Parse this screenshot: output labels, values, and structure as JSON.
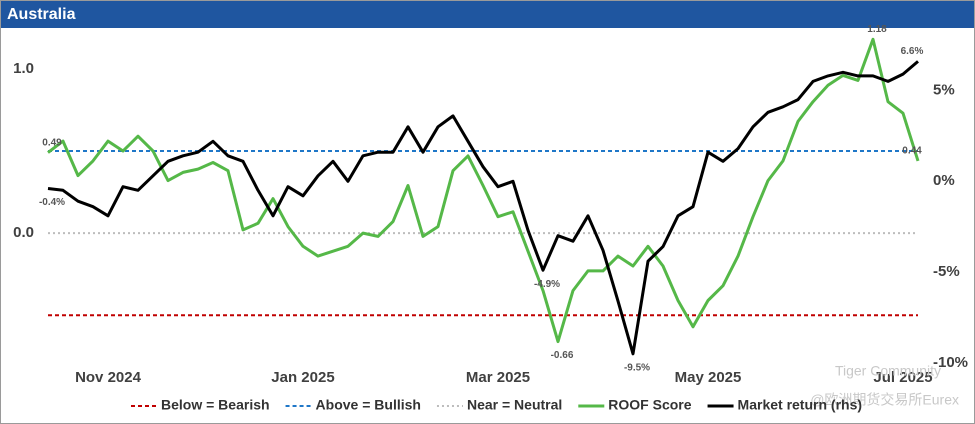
{
  "chart_data": {
    "type": "line",
    "title": "Australia",
    "categories": [
      null,
      null,
      null,
      null,
      "Nov 2024",
      null,
      null,
      null,
      null,
      null,
      null,
      null,
      null,
      null,
      null,
      null,
      null,
      "Jan 2025",
      null,
      null,
      null,
      null,
      null,
      null,
      null,
      null,
      null,
      null,
      null,
      null,
      "Mar 2025",
      null,
      null,
      null,
      null,
      null,
      null,
      null,
      null,
      null,
      null,
      null,
      null,
      null,
      "May 2025",
      null,
      null,
      null,
      null,
      null,
      null,
      null,
      null,
      null,
      null,
      null,
      null,
      "Jul 2025",
      null
    ],
    "series": [
      {
        "name": "ROOF Score",
        "color": "#55b848",
        "axis": "y",
        "values": [
          0.49,
          0.56,
          0.35,
          0.44,
          0.56,
          0.5,
          0.59,
          0.5,
          0.32,
          0.37,
          0.39,
          0.43,
          0.38,
          0.02,
          0.06,
          0.21,
          0.04,
          -0.08,
          -0.14,
          -0.11,
          -0.08,
          0.0,
          -0.02,
          0.07,
          0.29,
          -0.02,
          0.04,
          0.38,
          0.47,
          0.29,
          0.1,
          0.13,
          -0.11,
          -0.35,
          -0.66,
          -0.35,
          -0.23,
          -0.23,
          -0.14,
          -0.2,
          -0.08,
          -0.2,
          -0.41,
          -0.57,
          -0.41,
          -0.32,
          -0.14,
          0.1,
          0.32,
          0.44,
          0.68,
          0.8,
          0.9,
          0.96,
          0.93,
          1.18,
          0.8,
          0.73,
          0.44
        ],
        "value_labels": [
          "0.49",
          null,
          null,
          null,
          null,
          null,
          null,
          null,
          null,
          null,
          null,
          null,
          null,
          null,
          null,
          null,
          null,
          null,
          null,
          null,
          null,
          null,
          null,
          null,
          null,
          null,
          null,
          null,
          null,
          null,
          null,
          null,
          null,
          null,
          "-0.66",
          null,
          null,
          null,
          null,
          null,
          null,
          null,
          null,
          null,
          null,
          null,
          null,
          null,
          null,
          null,
          null,
          null,
          null,
          null,
          null,
          "1.18",
          null,
          null,
          "0.44"
        ]
      },
      {
        "name": "Market return (rhs)",
        "color": "#000000",
        "axis": "y2",
        "values": [
          -0.4,
          -0.5,
          -1.1,
          -1.4,
          -1.9,
          -0.3,
          -0.5,
          0.3,
          1.1,
          1.4,
          1.6,
          2.2,
          1.4,
          1.1,
          -0.5,
          -1.9,
          -0.3,
          -0.8,
          0.3,
          1.1,
          0.0,
          1.4,
          1.6,
          1.6,
          3.0,
          1.6,
          3.0,
          3.6,
          2.2,
          0.8,
          -0.3,
          0.0,
          -2.7,
          -4.9,
          -3.0,
          -3.3,
          -1.9,
          -3.8,
          -6.6,
          -9.5,
          -4.4,
          -3.6,
          -1.9,
          -1.4,
          1.6,
          1.1,
          1.8,
          3.0,
          3.8,
          4.1,
          4.5,
          5.5,
          5.8,
          6.0,
          5.8,
          5.8,
          5.5,
          5.9,
          6.6
        ],
        "value_labels": [
          "-0.4%",
          null,
          null,
          null,
          null,
          null,
          null,
          null,
          null,
          null,
          null,
          null,
          null,
          null,
          null,
          null,
          null,
          null,
          null,
          null,
          null,
          null,
          null,
          null,
          null,
          null,
          null,
          null,
          null,
          null,
          null,
          null,
          null,
          "-4.9%",
          null,
          null,
          null,
          null,
          null,
          "-9.5%",
          null,
          null,
          null,
          null,
          null,
          null,
          null,
          null,
          null,
          null,
          null,
          null,
          null,
          null,
          null,
          null,
          null,
          null,
          "6.6%"
        ]
      }
    ],
    "reference_lines": [
      {
        "name": "Below = Bearish",
        "value": -0.5,
        "color": "#c00000",
        "dash": "dashed"
      },
      {
        "name": "Above = Bullish",
        "value": 0.5,
        "color": "#1f77c8",
        "dash": "dashed"
      },
      {
        "name": "Near = Neutral",
        "value": 0,
        "color": "#bdbdbd",
        "dash": "dotted"
      }
    ],
    "ylim": [
      -0.9,
      1.2
    ],
    "yticks": [
      {
        "value": 0,
        "label": "0.0"
      },
      {
        "value": 1,
        "label": "1.0"
      }
    ],
    "y2lim": [
      -11,
      8
    ],
    "y2ticks": [
      {
        "value": -10,
        "label": "-10%"
      },
      {
        "value": -5,
        "label": "-5%"
      },
      {
        "value": 0,
        "label": "0%"
      },
      {
        "value": 5,
        "label": "5%"
      }
    ],
    "legend": "bottom",
    "grid": false,
    "watermark": [
      "Tiger Community",
      "@欧洲期货交易所Eurex"
    ]
  }
}
